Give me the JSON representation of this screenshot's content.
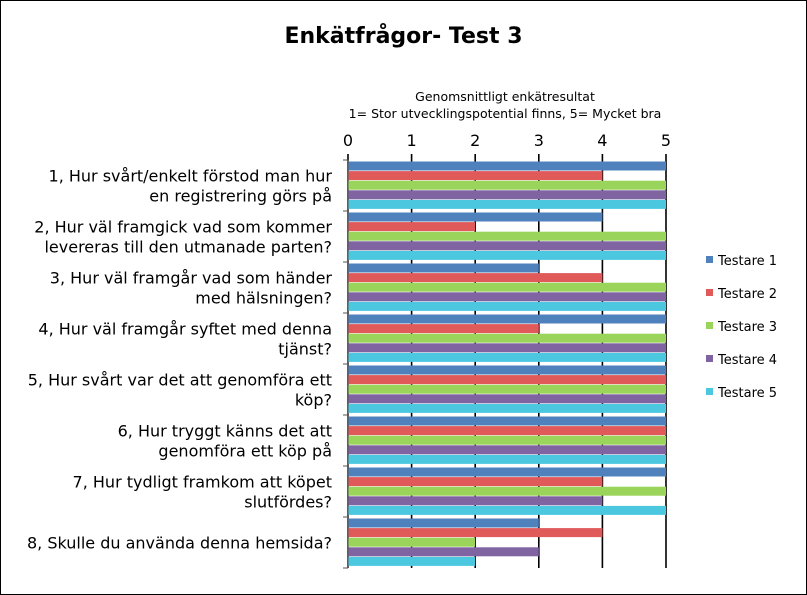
{
  "chart_data": {
    "type": "bar",
    "orientation": "horizontal",
    "title": "Enkätfrågor- Test 3",
    "xlabel": "Genomsnittligt enkätresultat",
    "xlabel_sub": "1= Stor utvecklingspotential finns, 5= Mycket bra",
    "xlim": [
      0,
      5
    ],
    "xticks": [
      "0",
      "1",
      "2",
      "3",
      "4",
      "5"
    ],
    "grid": true,
    "legend_position": "right",
    "categories": [
      [
        "1, Hur svårt/enkelt förstod man hur",
        "en registrering görs på"
      ],
      [
        "2, Hur väl framgick vad som kommer",
        "levereras till den utmanade parten?"
      ],
      [
        "3, Hur väl framgår vad som händer",
        "med hälsningen?"
      ],
      [
        "4, Hur väl framgår syftet med denna",
        "tjänst?"
      ],
      [
        "5, Hur svårt var det att genomföra ett",
        "köp?"
      ],
      [
        "6, Hur tryggt känns det att",
        "genomföra ett köp på"
      ],
      [
        "7, Hur tydligt framkom att köpet",
        "slutfördes?"
      ],
      [
        "8, Skulle du använda denna hemsida?"
      ]
    ],
    "series": [
      {
        "name": "Testare 1",
        "color": "#4f81bd",
        "values": [
          5,
          4,
          3,
          5,
          5,
          5,
          5,
          3
        ]
      },
      {
        "name": "Testare 2",
        "color": "#e05a5a",
        "values": [
          4,
          2,
          4,
          3,
          5,
          5,
          4,
          4
        ]
      },
      {
        "name": "Testare 3",
        "color": "#9bd45a",
        "values": [
          5,
          5,
          5,
          5,
          5,
          5,
          5,
          2
        ]
      },
      {
        "name": "Testare 4",
        "color": "#8064a2",
        "values": [
          5,
          5,
          5,
          5,
          5,
          5,
          4,
          3
        ]
      },
      {
        "name": "Testare 5",
        "color": "#4bc8e0",
        "values": [
          5,
          5,
          5,
          5,
          5,
          5,
          5,
          2
        ]
      }
    ]
  }
}
